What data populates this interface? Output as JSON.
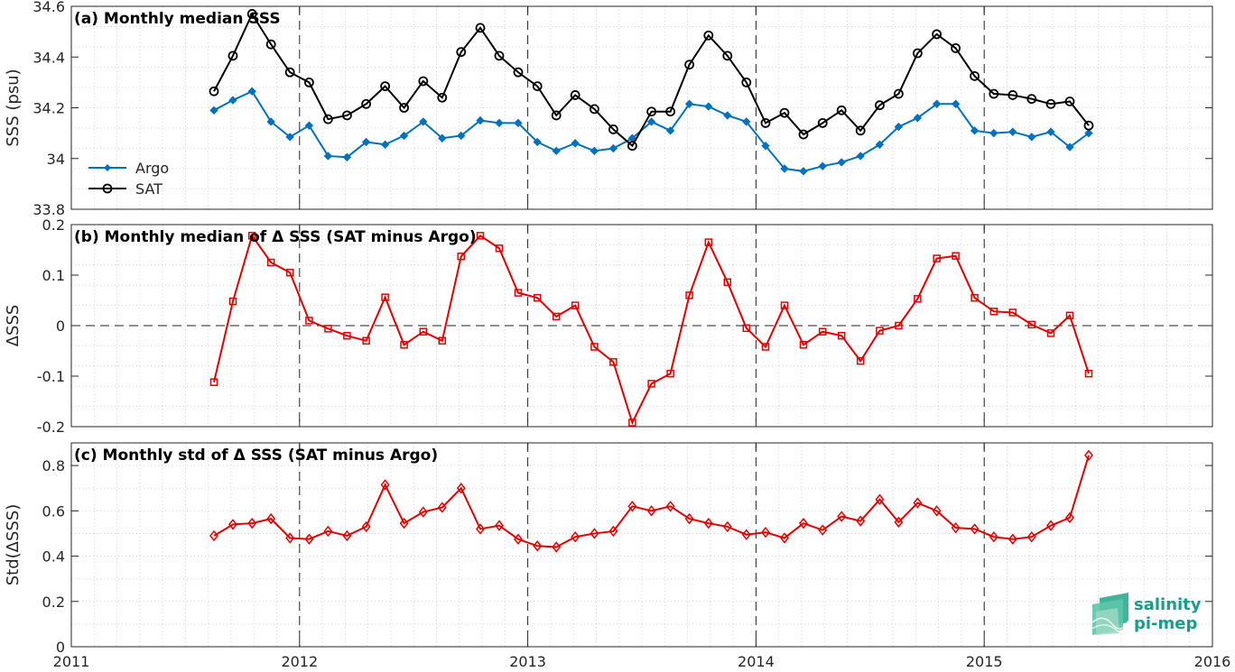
{
  "chart_data": [
    {
      "type": "line",
      "title": "(a) Monthly median SSS",
      "xlabel": "",
      "ylabel": "SSS (psu)",
      "xlim": [
        2011,
        2016
      ],
      "ylim": [
        33.8,
        34.6
      ],
      "xticks": [
        "2011",
        "2012",
        "2013",
        "2014",
        "2015",
        "2016"
      ],
      "yticks": [
        "33.8",
        "34",
        "34.2",
        "34.4",
        "34.6"
      ],
      "grid": "minor dotted",
      "legend_position": "left",
      "x": [
        2011.625,
        2011.708,
        2011.792,
        2011.875,
        2011.958,
        2012.042,
        2012.125,
        2012.208,
        2012.292,
        2012.375,
        2012.458,
        2012.542,
        2012.625,
        2012.708,
        2012.792,
        2012.875,
        2012.958,
        2013.042,
        2013.125,
        2013.208,
        2013.292,
        2013.375,
        2013.458,
        2013.542,
        2013.625,
        2013.708,
        2013.792,
        2013.875,
        2013.958,
        2014.042,
        2014.125,
        2014.208,
        2014.292,
        2014.375,
        2014.458,
        2014.542,
        2014.625,
        2014.708,
        2014.792,
        2014.875,
        2014.958,
        2015.042,
        2015.125,
        2015.208,
        2015.292,
        2015.375,
        2015.458
      ],
      "series": [
        {
          "name": "Argo",
          "color": "#0072bd",
          "marker": "filled-diamond",
          "values": [
            34.19,
            34.23,
            34.265,
            34.145,
            34.085,
            34.13,
            34.01,
            34.005,
            34.065,
            34.055,
            34.09,
            34.145,
            34.08,
            34.09,
            34.15,
            34.14,
            34.14,
            34.065,
            34.03,
            34.06,
            34.03,
            34.04,
            34.08,
            34.145,
            34.11,
            34.215,
            34.205,
            34.17,
            34.145,
            34.05,
            33.96,
            33.95,
            33.97,
            33.985,
            34.01,
            34.055,
            34.125,
            34.16,
            34.215,
            34.215,
            34.11,
            34.1,
            34.105,
            34.085,
            34.105,
            34.045,
            34.1
          ]
        },
        {
          "name": "SAT",
          "color": "#000000",
          "marker": "open-circle",
          "values": [
            34.265,
            34.405,
            34.57,
            34.45,
            34.34,
            34.3,
            34.155,
            34.17,
            34.215,
            34.285,
            34.2,
            34.305,
            34.24,
            34.42,
            34.515,
            34.405,
            34.34,
            34.285,
            34.17,
            34.25,
            34.195,
            34.115,
            34.05,
            34.185,
            34.185,
            34.37,
            34.485,
            34.405,
            34.3,
            34.14,
            34.18,
            34.095,
            34.14,
            34.19,
            34.11,
            34.21,
            34.255,
            34.415,
            34.49,
            34.435,
            34.325,
            34.255,
            34.25,
            34.235,
            34.215,
            34.225,
            34.13
          ]
        }
      ]
    },
    {
      "type": "line",
      "title": "(b) Monthly median of Δ SSS (SAT minus Argo)",
      "xlabel": "",
      "ylabel": "ΔSSS",
      "xlim": [
        2011,
        2016
      ],
      "ylim": [
        -0.2,
        0.2
      ],
      "xticks": [
        "2011",
        "2012",
        "2013",
        "2014",
        "2015",
        "2016"
      ],
      "yticks": [
        "-0.2",
        "-0.1",
        "0",
        "0.1",
        "0.2"
      ],
      "grid": "minor dotted",
      "zero_line": "dashed",
      "x": [
        2011.625,
        2011.708,
        2011.792,
        2011.875,
        2011.958,
        2012.042,
        2012.125,
        2012.208,
        2012.292,
        2012.375,
        2012.458,
        2012.542,
        2012.625,
        2012.708,
        2012.792,
        2012.875,
        2012.958,
        2013.042,
        2013.125,
        2013.208,
        2013.292,
        2013.375,
        2013.458,
        2013.542,
        2013.625,
        2013.708,
        2013.792,
        2013.875,
        2013.958,
        2014.042,
        2014.125,
        2014.208,
        2014.292,
        2014.375,
        2014.458,
        2014.542,
        2014.625,
        2014.708,
        2014.792,
        2014.875,
        2014.958,
        2015.042,
        2015.125,
        2015.208,
        2015.292,
        2015.375,
        2015.458
      ],
      "series": [
        {
          "color": "#e60000",
          "marker": "open-square",
          "values": [
            -0.112,
            0.048,
            0.178,
            0.125,
            0.105,
            0.01,
            -0.006,
            -0.02,
            -0.03,
            0.056,
            -0.038,
            -0.012,
            -0.03,
            0.137,
            0.178,
            0.153,
            0.065,
            0.055,
            0.018,
            0.04,
            -0.042,
            -0.072,
            -0.192,
            -0.115,
            -0.095,
            0.06,
            0.165,
            0.086,
            -0.005,
            -0.042,
            0.04,
            -0.038,
            -0.012,
            -0.02,
            -0.07,
            -0.01,
            0.0,
            0.053,
            0.133,
            0.138,
            0.055,
            0.028,
            0.026,
            0.002,
            -0.015,
            0.02,
            -0.095
          ]
        }
      ]
    },
    {
      "type": "line",
      "title": "(c) Monthly std of Δ SSS (SAT minus Argo)",
      "xlabel": "",
      "ylabel": "Std(ΔSSS)",
      "xlim": [
        2011,
        2016
      ],
      "ylim": [
        0,
        0.9
      ],
      "xticks": [
        "2011",
        "2012",
        "2013",
        "2014",
        "2015",
        "2016"
      ],
      "yticks": [
        "0",
        "0.2",
        "0.4",
        "0.6",
        "0.8"
      ],
      "grid": "minor dotted",
      "x": [
        2011.625,
        2011.708,
        2011.792,
        2011.875,
        2011.958,
        2012.042,
        2012.125,
        2012.208,
        2012.292,
        2012.375,
        2012.458,
        2012.542,
        2012.625,
        2012.708,
        2012.792,
        2012.875,
        2012.958,
        2013.042,
        2013.125,
        2013.208,
        2013.292,
        2013.375,
        2013.458,
        2013.542,
        2013.625,
        2013.708,
        2013.792,
        2013.875,
        2013.958,
        2014.042,
        2014.125,
        2014.208,
        2014.292,
        2014.375,
        2014.458,
        2014.542,
        2014.625,
        2014.708,
        2014.792,
        2014.875,
        2014.958,
        2015.042,
        2015.125,
        2015.208,
        2015.292,
        2015.375,
        2015.458
      ],
      "series": [
        {
          "color": "#e60000",
          "marker": "open-diamond",
          "values": [
            0.49,
            0.54,
            0.545,
            0.565,
            0.48,
            0.475,
            0.51,
            0.49,
            0.53,
            0.715,
            0.545,
            0.595,
            0.615,
            0.7,
            0.52,
            0.535,
            0.475,
            0.445,
            0.44,
            0.485,
            0.5,
            0.51,
            0.62,
            0.6,
            0.62,
            0.565,
            0.545,
            0.53,
            0.495,
            0.505,
            0.48,
            0.545,
            0.515,
            0.575,
            0.555,
            0.65,
            0.55,
            0.635,
            0.6,
            0.525,
            0.52,
            0.485,
            0.475,
            0.485,
            0.535,
            0.57,
            0.845
          ]
        }
      ]
    }
  ],
  "logo": {
    "line1": "salinity",
    "line2": "pi-mep"
  }
}
